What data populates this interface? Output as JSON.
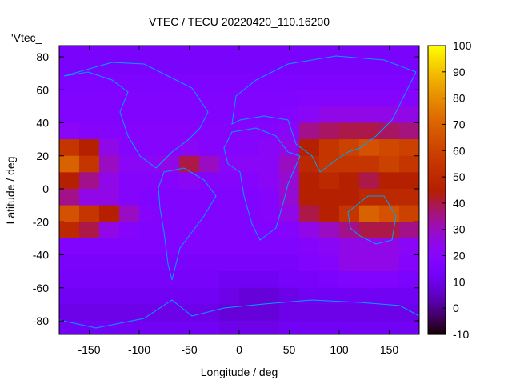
{
  "chart_data": {
    "type": "heatmap",
    "title": "VTEC / TECU 20220420_110.16200",
    "key_label": "'Vtec_",
    "xlabel": "Longitude / deg",
    "ylabel": "Latitude / deg",
    "xlim": [
      -180,
      180
    ],
    "ylim": [
      -87.5,
      87.5
    ],
    "xticks": [
      -150,
      -100,
      -50,
      0,
      50,
      100,
      150
    ],
    "yticks": [
      80,
      60,
      40,
      20,
      0,
      -20,
      -40,
      -60,
      -80
    ],
    "cbrange": [
      -10,
      100
    ],
    "cbticks": [
      100,
      90,
      80,
      70,
      60,
      50,
      40,
      30,
      20,
      10,
      0,
      -10
    ],
    "palette": "black-purple-red-yellow",
    "coastline_color": "#00a0ff",
    "lon": [
      -170,
      -150,
      -130,
      -110,
      -90,
      -70,
      -50,
      -30,
      -10,
      10,
      30,
      50,
      70,
      90,
      110,
      130,
      150,
      170
    ],
    "lat": [
      85,
      75,
      65,
      55,
      45,
      35,
      25,
      15,
      5,
      -5,
      -15,
      -25,
      -35,
      -45,
      -55,
      -65,
      -75,
      -85
    ],
    "values": [
      [
        15,
        15,
        15,
        15,
        15,
        15,
        15,
        15,
        15,
        15,
        15,
        15,
        15,
        15,
        15,
        15,
        15,
        15
      ],
      [
        15,
        15,
        15,
        15,
        15,
        15,
        15,
        15,
        15,
        15,
        15,
        15,
        15,
        15,
        15,
        15,
        15,
        15
      ],
      [
        17,
        17,
        17,
        17,
        17,
        17,
        17,
        17,
        17,
        17,
        17,
        17,
        17,
        17,
        17,
        17,
        17,
        17
      ],
      [
        18,
        18,
        18,
        18,
        18,
        18,
        18,
        18,
        18,
        18,
        18,
        18,
        19,
        20,
        20,
        20,
        20,
        20
      ],
      [
        18,
        18,
        18,
        18,
        18,
        18,
        18,
        18,
        18,
        18,
        18,
        19,
        22,
        25,
        25,
        25,
        25,
        25
      ],
      [
        22,
        20,
        20,
        20,
        20,
        20,
        20,
        20,
        20,
        20,
        20,
        22,
        35,
        38,
        40,
        40,
        38,
        36
      ],
      [
        55,
        45,
        25,
        20,
        20,
        20,
        22,
        20,
        20,
        20,
        22,
        25,
        45,
        55,
        60,
        65,
        62,
        60
      ],
      [
        70,
        55,
        30,
        22,
        22,
        25,
        40,
        30,
        22,
        22,
        22,
        30,
        50,
        55,
        55,
        55,
        60,
        55
      ],
      [
        45,
        35,
        25,
        20,
        20,
        20,
        22,
        20,
        20,
        20,
        22,
        28,
        45,
        50,
        45,
        40,
        45,
        45
      ],
      [
        35,
        25,
        25,
        20,
        18,
        18,
        18,
        18,
        18,
        18,
        20,
        28,
        45,
        45,
        45,
        50,
        50,
        50
      ],
      [
        65,
        55,
        45,
        30,
        20,
        18,
        18,
        18,
        18,
        18,
        20,
        25,
        40,
        45,
        55,
        70,
        65,
        60
      ],
      [
        50,
        40,
        25,
        20,
        18,
        18,
        18,
        18,
        18,
        18,
        18,
        20,
        25,
        30,
        35,
        40,
        40,
        35
      ],
      [
        18,
        18,
        18,
        18,
        18,
        18,
        18,
        18,
        18,
        18,
        18,
        18,
        20,
        22,
        25,
        25,
        25,
        22
      ],
      [
        15,
        15,
        15,
        15,
        15,
        15,
        15,
        15,
        15,
        15,
        15,
        15,
        18,
        20,
        25,
        25,
        25,
        20
      ],
      [
        14,
        14,
        14,
        14,
        14,
        14,
        14,
        14,
        12,
        12,
        12,
        14,
        14,
        16,
        18,
        18,
        18,
        16
      ],
      [
        12,
        12,
        12,
        12,
        12,
        12,
        12,
        12,
        10,
        8,
        8,
        10,
        12,
        12,
        12,
        12,
        12,
        12
      ],
      [
        10,
        10,
        10,
        10,
        10,
        10,
        10,
        10,
        8,
        8,
        8,
        10,
        10,
        10,
        10,
        10,
        10,
        10
      ],
      [
        12,
        12,
        12,
        12,
        12,
        12,
        12,
        12,
        10,
        10,
        10,
        12,
        12,
        12,
        12,
        12,
        12,
        12
      ]
    ]
  }
}
